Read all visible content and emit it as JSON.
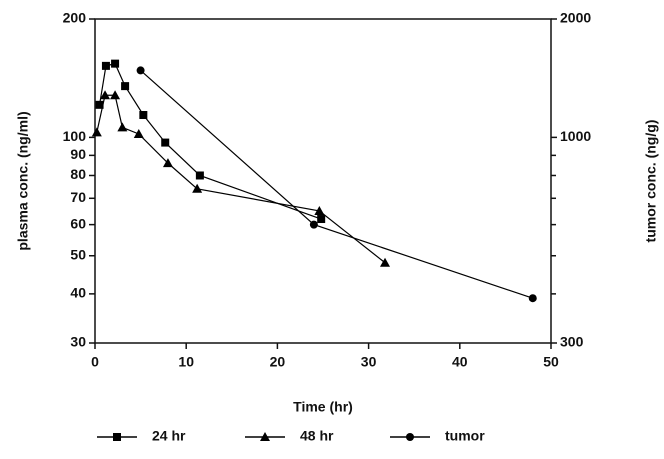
{
  "chart_data": {
    "type": "line",
    "x_label": "Time (hr)",
    "y_label": "plasma conc. (ng/ml)",
    "y2_label": "tumor conc. (ng/g)",
    "xlim": [
      0,
      50
    ],
    "xticks": [
      0,
      10,
      20,
      30,
      40,
      50
    ],
    "ylim": [
      30,
      200
    ],
    "yticks": [
      30,
      40,
      50,
      60,
      70,
      80,
      90,
      100,
      200
    ],
    "ylog": true,
    "y2lim": [
      300,
      2000
    ],
    "y2ticks": [
      300,
      1000,
      2000
    ],
    "y2minor_ticks": [
      400,
      500,
      600,
      700,
      800,
      900
    ],
    "y2log": true,
    "grid": false,
    "legend": "bottom",
    "series": [
      {
        "name": "24 hr",
        "color": "#000000",
        "marker": "square",
        "x": [
          0.5,
          1.2,
          2.2,
          3.3,
          5.3,
          7.7,
          11.5,
          24.8
        ],
        "values": [
          121,
          152,
          154,
          135,
          114,
          97,
          80,
          62
        ]
      },
      {
        "name": "48 hr",
        "color": "#000000",
        "marker": "triangle",
        "x": [
          0.2,
          1.1,
          2.2,
          3.0,
          4.8,
          8.0,
          11.2,
          24.6,
          31.8
        ],
        "values": [
          103,
          128,
          128,
          106,
          102,
          86,
          74,
          65,
          48
        ]
      },
      {
        "name": "tumor",
        "color": "#000000",
        "marker": "circle",
        "axis": "y2",
        "x": [
          5.0,
          24.0,
          48.0
        ],
        "values": [
          1480,
          600,
          390
        ]
      }
    ]
  }
}
